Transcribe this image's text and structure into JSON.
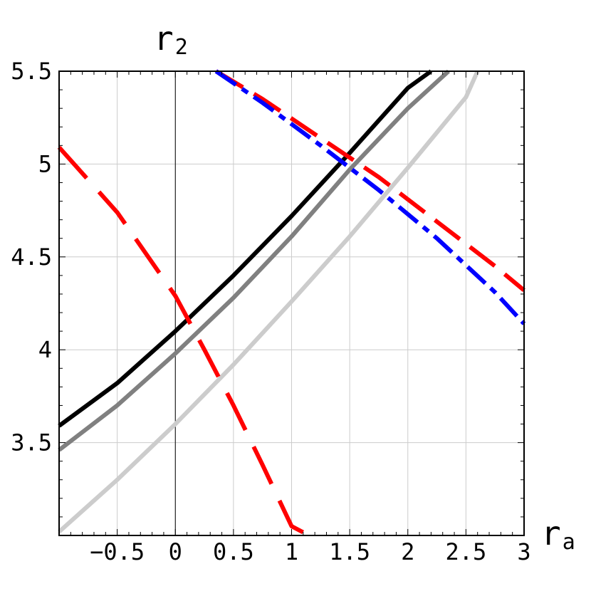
{
  "chart_data": {
    "type": "line",
    "xlabel": "r",
    "xlabel_sub": "a",
    "ylabel": "r",
    "ylabel_sub": "2",
    "xlim": [
      -1,
      3
    ],
    "ylim": [
      3,
      5.5
    ],
    "grid": true,
    "frame": true,
    "x_ticks": [
      {
        "value": -0.5,
        "label": "−0.5"
      },
      {
        "value": 0,
        "label": "0"
      },
      {
        "value": 0.5,
        "label": "0.5"
      },
      {
        "value": 1,
        "label": "1"
      },
      {
        "value": 1.5,
        "label": "1.5"
      },
      {
        "value": 2,
        "label": "2"
      },
      {
        "value": 2.5,
        "label": "2.5"
      },
      {
        "value": 3,
        "label": "3"
      }
    ],
    "y_ticks": [
      {
        "value": 3.5,
        "label": "3.5"
      },
      {
        "value": 4,
        "label": "4"
      },
      {
        "value": 4.5,
        "label": "4.5"
      },
      {
        "value": 5,
        "label": "5"
      },
      {
        "value": 5.5,
        "label": "5.5"
      }
    ],
    "series": [
      {
        "color": "#000000",
        "dash": "solid",
        "x": [
          -1,
          -0.5,
          0,
          0.5,
          1,
          1.5,
          2,
          2.2
        ],
        "y": [
          3.59,
          3.82,
          4.1,
          4.4,
          4.72,
          5.06,
          5.41,
          5.5
        ]
      },
      {
        "color": "#808080",
        "dash": "solid",
        "x": [
          -1,
          -0.5,
          0,
          0.5,
          1,
          1.5,
          2,
          2.35
        ],
        "y": [
          3.46,
          3.7,
          3.98,
          4.28,
          4.61,
          4.97,
          5.3,
          5.5
        ]
      },
      {
        "color": "#cccccc",
        "dash": "solid",
        "x": [
          -1,
          -0.5,
          0,
          0.5,
          1,
          1.5,
          2,
          2.5,
          2.6
        ],
        "y": [
          3.02,
          3.3,
          3.6,
          3.92,
          4.26,
          4.61,
          4.98,
          5.36,
          5.5
        ]
      },
      {
        "color": "#ff0000",
        "dash": "long",
        "x": [
          -1,
          -0.5,
          0,
          0.25,
          0.5,
          0.75,
          1,
          1.15
        ],
        "y": [
          5.09,
          4.74,
          4.29,
          4.0,
          3.7,
          3.38,
          3.05,
          3.0
        ]
      },
      {
        "color": "#ff0000",
        "dash": "medium",
        "x": [
          0.35,
          0.75,
          1.25,
          1.75,
          2.25,
          2.75,
          3
        ],
        "y": [
          5.5,
          5.35,
          5.14,
          4.93,
          4.69,
          4.45,
          4.32
        ]
      },
      {
        "color": "#0000ff",
        "dash": "dashdot",
        "x": [
          0.35,
          0.75,
          1.25,
          1.75,
          2.25,
          2.75,
          3
        ],
        "y": [
          5.5,
          5.33,
          5.1,
          4.86,
          4.6,
          4.31,
          4.14
        ]
      }
    ]
  }
}
